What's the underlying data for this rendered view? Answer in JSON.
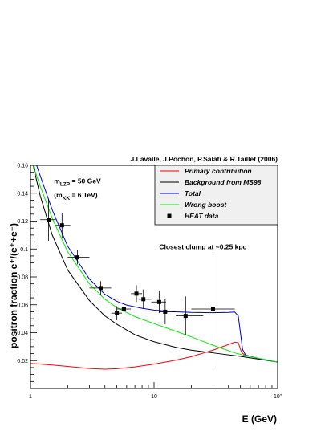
{
  "chart_data": {
    "type": "line",
    "title": "J.Lavalle, J.Pochon, P.Salati & R.Taillet (2006)",
    "xlabel": "E (GeV)",
    "ylabel": "positron fraction e⁺/(e⁺+e⁻)",
    "x_scale": "log",
    "xlim": [
      1,
      100
    ],
    "ylim": [
      0,
      0.16
    ],
    "x_ticks": [
      {
        "value": 1,
        "label": "1"
      },
      {
        "value": 10,
        "label": "10"
      },
      {
        "value": 100,
        "label": "10²"
      }
    ],
    "y_ticks": [
      {
        "value": 0.02,
        "label": "0.02"
      },
      {
        "value": 0.04,
        "label": "0.04"
      },
      {
        "value": 0.06,
        "label": "0.06"
      },
      {
        "value": 0.08,
        "label": "0.08"
      },
      {
        "value": 0.1,
        "label": "0.1"
      },
      {
        "value": 0.12,
        "label": "0.12"
      },
      {
        "value": 0.14,
        "label": "0.14"
      },
      {
        "value": 0.16,
        "label": "0.16"
      }
    ],
    "grid": false,
    "legend_position": "top-right",
    "annotations": [
      {
        "text": "m_LZP = 50 GeV",
        "main": "m",
        "sub": "LZP",
        "rest": " = 50 GeV",
        "x": 1.55,
        "y": 0.147
      },
      {
        "text": "(m_KK = 6 TeV)",
        "main": "(m",
        "sub": "KK",
        "rest": " = 6 TeV)",
        "x": 1.55,
        "y": 0.137
      },
      {
        "text": "Closest clump at ~0.25 kpc",
        "x": 11,
        "y": 0.1
      }
    ],
    "series": [
      {
        "name": "Primary contribution",
        "kind": "line",
        "color": "#ff0000",
        "points": [
          [
            1,
            0.018
          ],
          [
            1.5,
            0.0168
          ],
          [
            2,
            0.0158
          ],
          [
            3,
            0.0143
          ],
          [
            4,
            0.0138
          ],
          [
            5,
            0.0142
          ],
          [
            7,
            0.0155
          ],
          [
            10,
            0.0175
          ],
          [
            15,
            0.0203
          ],
          [
            20,
            0.0228
          ],
          [
            30,
            0.0275
          ],
          [
            40,
            0.0315
          ],
          [
            45,
            0.0332
          ],
          [
            48,
            0.0328
          ],
          [
            51,
            0.026
          ],
          [
            55,
            0.0235
          ]
        ]
      },
      {
        "name": "Background from MS98",
        "kind": "line",
        "color": "#000000",
        "points": [
          [
            1.05,
            0.16
          ],
          [
            1.2,
            0.138
          ],
          [
            1.5,
            0.11
          ],
          [
            2,
            0.085
          ],
          [
            3,
            0.063
          ],
          [
            4,
            0.052
          ],
          [
            5,
            0.046
          ],
          [
            7,
            0.0385
          ],
          [
            10,
            0.0335
          ],
          [
            15,
            0.0295
          ],
          [
            20,
            0.0275
          ],
          [
            30,
            0.0255
          ],
          [
            50,
            0.023
          ],
          [
            100,
            0.019
          ]
        ]
      },
      {
        "name": "Total",
        "kind": "line",
        "color": "#0000cc",
        "points": [
          [
            1.12,
            0.16
          ],
          [
            1.5,
            0.128
          ],
          [
            2,
            0.102
          ],
          [
            3,
            0.0785
          ],
          [
            4,
            0.0675
          ],
          [
            5,
            0.0625
          ],
          [
            6,
            0.0598
          ],
          [
            8,
            0.0575
          ],
          [
            10,
            0.0562
          ],
          [
            15,
            0.055
          ],
          [
            20,
            0.0545
          ],
          [
            30,
            0.0543
          ],
          [
            40,
            0.0545
          ],
          [
            45,
            0.0548
          ],
          [
            48,
            0.052
          ],
          [
            50,
            0.04
          ],
          [
            52,
            0.028
          ],
          [
            55,
            0.024
          ],
          [
            70,
            0.0215
          ],
          [
            100,
            0.019
          ]
        ]
      },
      {
        "name": "Wrong boost",
        "kind": "line",
        "color": "#00ee00",
        "points": [
          [
            1.05,
            0.16
          ],
          [
            1.2,
            0.145
          ],
          [
            1.5,
            0.122
          ],
          [
            2,
            0.098
          ],
          [
            3,
            0.075
          ],
          [
            4,
            0.064
          ],
          [
            5,
            0.058
          ],
          [
            7,
            0.0515
          ],
          [
            10,
            0.0465
          ],
          [
            15,
            0.041
          ],
          [
            20,
            0.037
          ],
          [
            30,
            0.031
          ],
          [
            45,
            0.0255
          ],
          [
            55,
            0.0235
          ],
          [
            100,
            0.019
          ]
        ]
      },
      {
        "name": "HEAT data",
        "kind": "points",
        "color": "#000000",
        "points": [
          {
            "x": 1.4,
            "y": 0.121,
            "xlo": 1.2,
            "xhi": 1.6,
            "ylo": 0.106,
            "yhi": 0.136
          },
          {
            "x": 1.8,
            "y": 0.117,
            "xlo": 1.6,
            "xhi": 2.1,
            "ylo": 0.108,
            "yhi": 0.126
          },
          {
            "x": 2.4,
            "y": 0.094,
            "xlo": 2.0,
            "xhi": 3.0,
            "ylo": 0.089,
            "yhi": 0.099
          },
          {
            "x": 3.7,
            "y": 0.072,
            "xlo": 3.0,
            "xhi": 4.5,
            "ylo": 0.067,
            "yhi": 0.077
          },
          {
            "x": 5.0,
            "y": 0.054,
            "xlo": 4.5,
            "xhi": 5.5,
            "ylo": 0.049,
            "yhi": 0.059
          },
          {
            "x": 5.7,
            "y": 0.057,
            "xlo": 5.0,
            "xhi": 6.5,
            "ylo": 0.052,
            "yhi": 0.062
          },
          {
            "x": 7.2,
            "y": 0.068,
            "xlo": 6.5,
            "xhi": 8.0,
            "ylo": 0.062,
            "yhi": 0.074
          },
          {
            "x": 8.2,
            "y": 0.064,
            "xlo": 7.5,
            "xhi": 9.5,
            "ylo": 0.057,
            "yhi": 0.071
          },
          {
            "x": 11.0,
            "y": 0.062,
            "xlo": 9.5,
            "xhi": 12.5,
            "ylo": 0.054,
            "yhi": 0.07
          },
          {
            "x": 12.3,
            "y": 0.055,
            "xlo": 11.0,
            "xhi": 15.0,
            "ylo": 0.046,
            "yhi": 0.064
          },
          {
            "x": 18.0,
            "y": 0.052,
            "xlo": 15.0,
            "xhi": 25.0,
            "ylo": 0.038,
            "yhi": 0.066
          },
          {
            "x": 30.0,
            "y": 0.057,
            "xlo": 20.0,
            "xhi": 45.0,
            "ylo": 0.016,
            "yhi": 0.098
          }
        ]
      }
    ]
  }
}
